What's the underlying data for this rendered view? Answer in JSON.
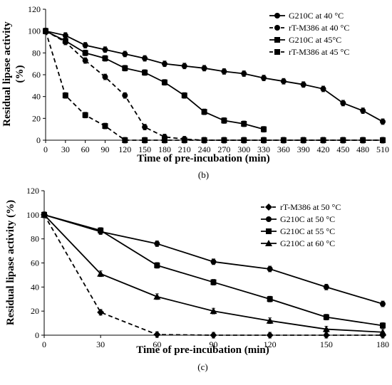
{
  "chart_data": [
    {
      "type": "line",
      "panel_label": "(b)",
      "xlabel": "Time of pre-incubation (min)",
      "ylabel": "Residual lipase activity (%)",
      "ylabel_lines": [
        "Residual lipase activity",
        "(%)"
      ],
      "xlim": [
        0,
        510
      ],
      "ylim": [
        0,
        120
      ],
      "x_ticks": [
        0,
        30,
        60,
        90,
        120,
        150,
        180,
        210,
        240,
        270,
        300,
        330,
        360,
        390,
        420,
        450,
        480,
        510
      ],
      "y_ticks": [
        0,
        20,
        40,
        60,
        80,
        100,
        120
      ],
      "grid": false,
      "legend_position": "top-right",
      "series": [
        {
          "name": "G210C at 40 °C",
          "marker": "circle",
          "dash": false,
          "x": [
            0,
            30,
            60,
            90,
            120,
            150,
            180,
            210,
            240,
            270,
            300,
            330,
            360,
            390,
            420,
            450,
            480,
            510
          ],
          "y": [
            100,
            96,
            87,
            83,
            79,
            75,
            70,
            68,
            66,
            63,
            61,
            57,
            54,
            51,
            47,
            34,
            27,
            17
          ]
        },
        {
          "name": "rT-M386 at 40 °C",
          "marker": "circle",
          "dash": true,
          "x": [
            0,
            30,
            60,
            90,
            120,
            150,
            180,
            210,
            240,
            270,
            300,
            330,
            360,
            390,
            420,
            450,
            480,
            510
          ],
          "y": [
            100,
            90,
            73,
            58,
            41,
            12,
            3,
            1,
            0,
            0,
            0,
            0,
            0,
            0,
            0,
            0,
            0,
            0
          ]
        },
        {
          "name": "G210C at 45°C",
          "marker": "square",
          "dash": false,
          "x": [
            0,
            30,
            60,
            90,
            120,
            150,
            180,
            210,
            240,
            270,
            300,
            330
          ],
          "y": [
            100,
            91,
            80,
            75,
            66,
            62,
            53,
            41,
            26,
            18,
            15,
            10
          ]
        },
        {
          "name": "rT-M386 at 45 °C",
          "marker": "square",
          "dash": true,
          "x": [
            0,
            30,
            60,
            90,
            120,
            150,
            180,
            210,
            240,
            270,
            300,
            330,
            360,
            390,
            420,
            450,
            480,
            510
          ],
          "y": [
            100,
            41,
            23,
            13,
            0,
            0,
            0,
            0,
            0,
            0,
            0,
            0,
            0,
            0,
            0,
            0,
            0,
            0
          ]
        }
      ]
    },
    {
      "type": "line",
      "panel_label": "(c)",
      "xlabel": "Time of pre-incubation (min)",
      "ylabel": "Residual lipase activity (%)",
      "ylabel_lines": [
        "Residual lipase activity (%)"
      ],
      "xlim": [
        0,
        180
      ],
      "ylim": [
        0,
        120
      ],
      "x_ticks": [
        0,
        30,
        60,
        90,
        120,
        150,
        180
      ],
      "y_ticks": [
        0,
        20,
        40,
        60,
        80,
        100,
        120
      ],
      "grid": false,
      "legend_position": "top-right",
      "series": [
        {
          "name": "rT-M386 at 50 °C",
          "marker": "diamond",
          "dash": true,
          "x": [
            0,
            30,
            60,
            90,
            120,
            150,
            180
          ],
          "y": [
            100,
            19,
            0.5,
            0,
            0,
            0,
            0
          ]
        },
        {
          "name": "G210C at 50 °C",
          "marker": "circle",
          "dash": false,
          "x": [
            0,
            30,
            60,
            90,
            120,
            150,
            180
          ],
          "y": [
            100,
            86,
            76,
            61,
            55,
            40,
            26
          ]
        },
        {
          "name": "G210C at 55 °C",
          "marker": "square",
          "dash": false,
          "x": [
            0,
            30,
            60,
            90,
            120,
            150,
            180
          ],
          "y": [
            100,
            87,
            58,
            44,
            30,
            15,
            8
          ]
        },
        {
          "name": "G210C at 60 °C",
          "marker": "triangle",
          "dash": false,
          "x": [
            0,
            30,
            60,
            90,
            120,
            150,
            180
          ],
          "y": [
            100,
            51,
            32,
            20,
            12,
            5,
            2.5
          ]
        }
      ]
    }
  ]
}
